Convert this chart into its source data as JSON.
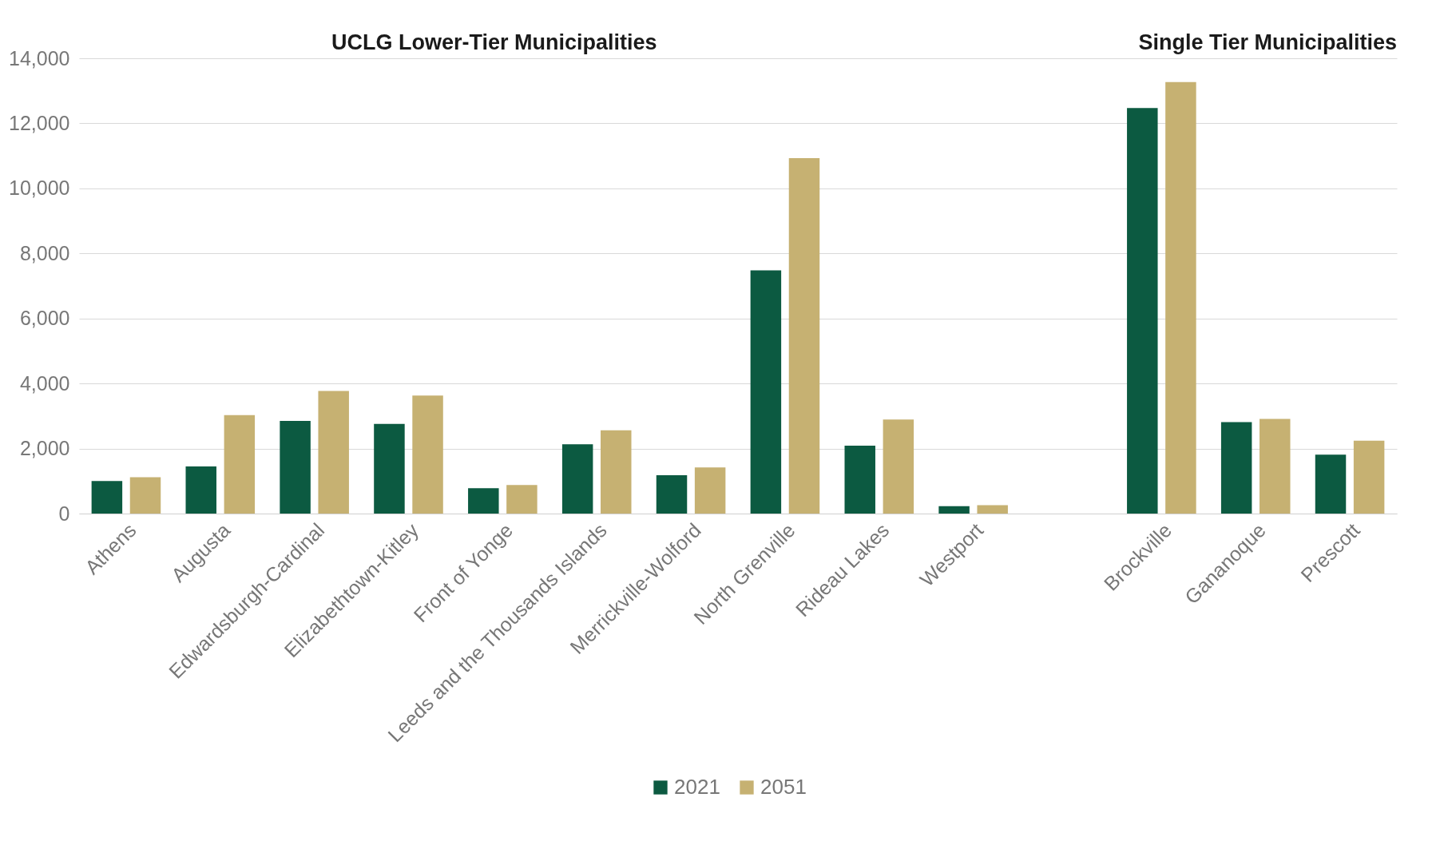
{
  "chart_data": {
    "type": "bar",
    "annotations": [
      "UCLG Lower-Tier Municipalities",
      "Single Tier Municipalities"
    ],
    "categories": [
      "Athens",
      "Augusta",
      "Edwardsburgh-Cardinal",
      "Elizabethtown-Kitley",
      "Front of Yonge",
      "Leeds and the Thousands Islands",
      "Merrickville-Wolford",
      "North Grenville",
      "Rideau Lakes",
      "Westport",
      null,
      "Brockville",
      "Gananoque",
      "Prescott"
    ],
    "series": [
      {
        "name": "2021",
        "color": "#0c5a41",
        "values": [
          1000,
          1450,
          2850,
          2760,
          780,
          2130,
          1180,
          7480,
          2090,
          230,
          null,
          12470,
          2810,
          1810
        ]
      },
      {
        "name": "2051",
        "color": "#c6b172",
        "values": [
          1120,
          3030,
          3770,
          3630,
          880,
          2560,
          1420,
          10930,
          2890,
          260,
          null,
          13270,
          2910,
          2240
        ]
      }
    ],
    "ylim": [
      0,
      14000
    ],
    "yticks": [
      0,
      {
        "value": 2000,
        "label": "2,000"
      },
      {
        "value": 4000,
        "label": "4,000"
      },
      {
        "value": 6000,
        "label": "6,000"
      },
      {
        "value": 8000,
        "label": "8,000"
      },
      {
        "value": 10000,
        "label": "10,000"
      },
      {
        "value": 12000,
        "label": "12,000"
      },
      {
        "value": 14000,
        "label": "14,000"
      }
    ],
    "grid": "y",
    "legend": "bottom"
  }
}
